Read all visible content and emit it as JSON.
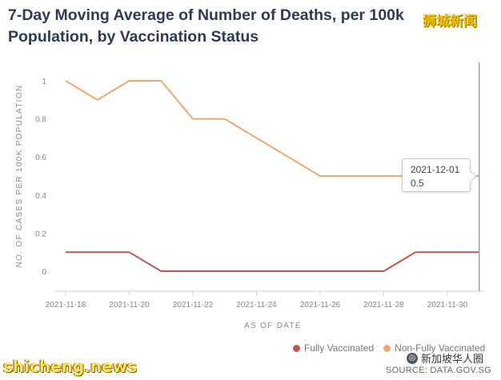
{
  "title": "7-Day Moving Average of Number of Deaths, per 100k Population, by Vaccination Status",
  "watermarks": {
    "top_right": "狮城新闻",
    "bottom_left": "shicheng.news",
    "bottom_right": "新加坡华人圈"
  },
  "source": "SOURCE: DATA.GOV.SG",
  "tooltip": {
    "date": "2021-12-01",
    "value": "0.5"
  },
  "colors": {
    "fully": "#c0574a",
    "non_fully": "#f2a66b",
    "crosshair": "#a0a0a0"
  },
  "chart_data": {
    "type": "line",
    "title": "7-Day Moving Average of Number of Deaths, per 100k Population, by Vaccination Status",
    "xlabel": "AS OF DATE",
    "ylabel": "NO. OF CASES PER 100K POPULATION",
    "x": [
      "2021-11-18",
      "2021-11-19",
      "2021-11-20",
      "2021-11-21",
      "2021-11-22",
      "2021-11-23",
      "2021-11-24",
      "2021-11-25",
      "2021-11-26",
      "2021-11-27",
      "2021-11-28",
      "2021-11-29",
      "2021-11-30",
      "2021-12-01"
    ],
    "x_tick_labels": [
      "2021-11-18",
      "2021-11-20",
      "2021-11-22",
      "2021-11-24",
      "2021-11-26",
      "2021-11-28",
      "2021-11-30"
    ],
    "y_tick_labels": [
      "0",
      "0.2",
      "0.4",
      "0.6",
      "0.8",
      "1"
    ],
    "ylim": [
      0,
      1
    ],
    "grid": false,
    "legend_position": "bottom-right",
    "series": [
      {
        "name": "Fully Vaccinated",
        "values": [
          0.1,
          0.1,
          0.1,
          0,
          0,
          0,
          0,
          0,
          0,
          0,
          0,
          0.1,
          0.1,
          0.1
        ]
      },
      {
        "name": "Non-Fully Vaccinated",
        "values": [
          1,
          0.9,
          1,
          1,
          0.8,
          0.8,
          0.7,
          0.6,
          0.5,
          0.5,
          0.5,
          0.5,
          0.5,
          0.5
        ]
      }
    ]
  }
}
